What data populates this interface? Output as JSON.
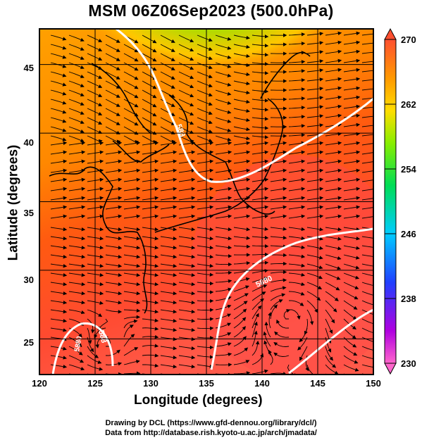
{
  "title": "MSM 06Z06Sep2023 (500.0hPa)",
  "x_axis": {
    "label": "Longitude (degrees)",
    "ticks": [
      "120",
      "125",
      "130",
      "135",
      "140",
      "145",
      "150"
    ],
    "range": [
      120,
      150
    ]
  },
  "y_axis": {
    "label": "Latitude  (degrees)",
    "ticks": [
      "25",
      "30",
      "35",
      "40",
      "45"
    ],
    "range": [
      22.4,
      47.6
    ]
  },
  "colorbar": {
    "ticks": [
      "270",
      "262",
      "254",
      "246",
      "238",
      "230"
    ],
    "range": [
      230,
      270
    ],
    "colors": [
      "#ff66cc",
      "#b000e0",
      "#2040ff",
      "#00ccff",
      "#00dd55",
      "#88ee00",
      "#ffdd00",
      "#ff9900",
      "#ff4000",
      "#ff5050"
    ]
  },
  "contour_labels": [
    "588",
    "588",
    "5880",
    "5880"
  ],
  "credits": {
    "line1": "Drawing by DCL (https://www.gfd-dennou.org/library/dcl/)",
    "line2": "Data from http://database.rish.kyoto-u.ac.jp/arch/jmadata/"
  }
}
